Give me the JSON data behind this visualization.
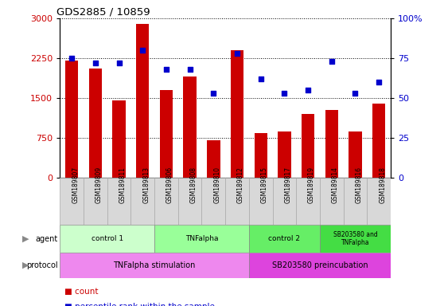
{
  "title": "GDS2885 / 10859",
  "samples": [
    "GSM189807",
    "GSM189809",
    "GSM189811",
    "GSM189813",
    "GSM189806",
    "GSM189808",
    "GSM189810",
    "GSM189812",
    "GSM189815",
    "GSM189817",
    "GSM189819",
    "GSM189814",
    "GSM189816",
    "GSM189818"
  ],
  "counts": [
    2200,
    2050,
    1450,
    2900,
    1650,
    1900,
    700,
    2400,
    830,
    870,
    1200,
    1280,
    870,
    1400
  ],
  "percentiles": [
    75,
    72,
    72,
    80,
    68,
    68,
    53,
    78,
    62,
    53,
    55,
    73,
    53,
    60
  ],
  "bar_color": "#cc0000",
  "dot_color": "#0000cc",
  "ylim_left": [
    0,
    3000
  ],
  "ylim_right": [
    0,
    100
  ],
  "yticks_left": [
    0,
    750,
    1500,
    2250,
    3000
  ],
  "yticks_right": [
    0,
    25,
    50,
    75,
    100
  ],
  "ytick_labels_right": [
    "0",
    "25",
    "50",
    "75",
    "100%"
  ],
  "agent_groups": [
    {
      "label": "control 1",
      "start": 0,
      "end": 4,
      "color": "#ccffcc"
    },
    {
      "label": "TNFalpha",
      "start": 4,
      "end": 8,
      "color": "#99ff99"
    },
    {
      "label": "control 2",
      "start": 8,
      "end": 11,
      "color": "#66ee66"
    },
    {
      "label": "SB203580 and\nTNFalpha",
      "start": 11,
      "end": 14,
      "color": "#44dd44"
    }
  ],
  "protocol_groups": [
    {
      "label": "TNFalpha stimulation",
      "start": 0,
      "end": 8,
      "color": "#ee88ee"
    },
    {
      "label": "SB203580 preincubation",
      "start": 8,
      "end": 14,
      "color": "#dd44dd"
    }
  ],
  "legend_count_color": "#cc0000",
  "legend_dot_color": "#0000cc",
  "tick_label_color_left": "#cc0000",
  "tick_label_color_right": "#0000cc",
  "sample_box_color": "#d8d8d8",
  "arrow_color": "#888888"
}
